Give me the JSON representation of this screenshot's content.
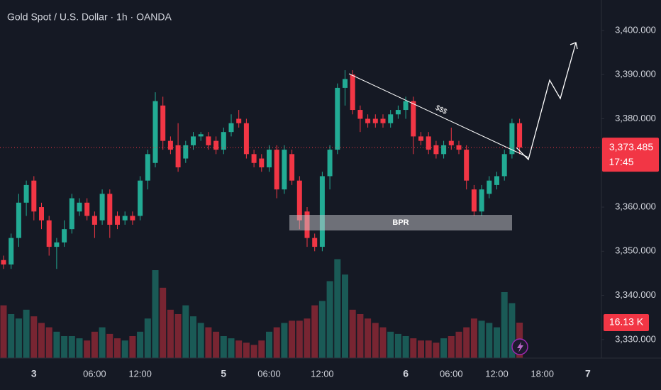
{
  "chart_data": {
    "type": "candlestick",
    "title": "Gold Spot / U.S. Dollar · 1h · OANDA",
    "categories": [
      null,
      null,
      null,
      null,
      "3",
      null,
      null,
      null,
      null,
      null,
      null,
      null,
      "06:00",
      null,
      null,
      null,
      null,
      null,
      "12:00",
      null,
      null,
      null,
      null,
      null,
      null,
      null,
      null,
      null,
      null,
      "5",
      null,
      null,
      null,
      null,
      null,
      "06:00",
      null,
      null,
      null,
      null,
      null,
      null,
      "12:00",
      null,
      null,
      null,
      null,
      null,
      null,
      null,
      null,
      null,
      null,
      "6",
      null,
      null,
      null,
      null,
      null,
      "06:00",
      null,
      null,
      null,
      null,
      null,
      "12:00",
      null,
      null,
      null,
      null,
      null,
      "18:00",
      null,
      null,
      null,
      null,
      null,
      "7"
    ],
    "open": [
      3348,
      3347,
      3353,
      3361,
      3366,
      3360,
      3357,
      3351,
      3352,
      3355,
      3359,
      3361,
      3358,
      3357,
      3363,
      3358,
      3357,
      3358,
      3358,
      3366,
      3370,
      3383,
      3375,
      3374,
      3371,
      3374,
      3376,
      3376,
      3375,
      3373,
      3377,
      3380,
      3379,
      3372,
      3371,
      3369,
      3373,
      3364,
      3372,
      3366,
      3359,
      3353,
      3351,
      3367,
      3373,
      3387,
      3390,
      3382,
      3380,
      3380,
      3380,
      3379,
      3381,
      3382,
      3384,
      3376,
      3376,
      3374,
      3372,
      3375,
      3374,
      3373,
      3364,
      3359,
      3363,
      3365,
      3367,
      3372,
      3379,
      null,
      null,
      null,
      null,
      null,
      null,
      null,
      null,
      null
    ],
    "high": [
      3349,
      3354,
      3363,
      3366,
      3367,
      3361,
      3358,
      3353,
      3357,
      3363,
      3362,
      3362,
      3359,
      3364,
      3364,
      3359,
      3359,
      3359,
      3367,
      3373,
      3386,
      3385,
      3376,
      3379,
      3375,
      3377,
      3377,
      3377,
      3376,
      3378,
      3381,
      3382,
      3380,
      3373,
      3372,
      3374,
      3374,
      3374,
      3373,
      3367,
      3360,
      3354,
      3368,
      3374,
      3388,
      3391,
      3391,
      3383,
      3381,
      3381,
      3381,
      3382,
      3383,
      3385,
      3385,
      3377,
      3377,
      3375,
      3375,
      3378,
      3375,
      3374,
      3365,
      3365,
      3367,
      3368,
      3373,
      3380,
      3380,
      null,
      null,
      null,
      null,
      null,
      null,
      null,
      null,
      null
    ],
    "low": [
      3346,
      3346,
      3351,
      3358,
      3357,
      3355,
      3349,
      3346,
      3351,
      3354,
      3358,
      3357,
      3353,
      3356,
      3353,
      3355,
      3356,
      3356,
      3357,
      3364,
      3369,
      3373,
      3372,
      3368,
      3370,
      3373,
      3375,
      3373,
      3372,
      3372,
      3376,
      3378,
      3371,
      3369,
      3368,
      3368,
      3362,
      3363,
      3365,
      3355,
      3351,
      3350,
      3350,
      3364,
      3372,
      3383,
      3381,
      3377,
      3378,
      3378,
      3378,
      3378,
      3380,
      3380,
      3372,
      3374,
      3372,
      3371,
      3371,
      3373,
      3372,
      3364,
      3358,
      3358,
      3362,
      3364,
      3366,
      3371,
      3372,
      null,
      null,
      null,
      null,
      null,
      null,
      null,
      null,
      null
    ],
    "close": [
      3347,
      3353,
      3361,
      3365,
      3359,
      3357,
      3351,
      3352,
      3355,
      3362,
      3361,
      3358,
      3356,
      3363,
      3356,
      3356,
      3358,
      3357,
      3366,
      3372,
      3384,
      3375,
      3373,
      3369,
      3374,
      3376,
      3376.5,
      3374,
      3373,
      3377,
      3379,
      3379,
      3372,
      3370,
      3369,
      3373,
      3364,
      3373,
      3366,
      3357,
      3353,
      3351,
      3367,
      3373,
      3387,
      3389,
      3382,
      3380,
      3379,
      3379,
      3379,
      3381,
      3382,
      3384,
      3376,
      3375,
      3373,
      3372,
      3374,
      3374,
      3373,
      3366,
      3359,
      3364,
      3366,
      3367,
      3372,
      3379,
      3373.485,
      null,
      null,
      null,
      null,
      null,
      null,
      null,
      null,
      null
    ],
    "volume": [
      24,
      20,
      18,
      22,
      19,
      16,
      14,
      12,
      10,
      10,
      9,
      8,
      12,
      14,
      11,
      9,
      8,
      10,
      12,
      18,
      40,
      32,
      22,
      20,
      24,
      19,
      16,
      14,
      12,
      10,
      9,
      8,
      7,
      6,
      8,
      12,
      14,
      16,
      17,
      17,
      18,
      24,
      26,
      35,
      45,
      38,
      22,
      20,
      18,
      16,
      14,
      12,
      11,
      10,
      9,
      8,
      8,
      7,
      9,
      10,
      12,
      14,
      18,
      17,
      16,
      14,
      30,
      25,
      16.13,
      null,
      null,
      null,
      null,
      null,
      null,
      null,
      null,
      null
    ],
    "volume_last": {
      "value": 16.13,
      "label": "16.13 K"
    },
    "volume_ylim": [
      0,
      40
    ],
    "up_color": "#22ab94",
    "down_color": "#f23645",
    "ylim": [
      3325.8,
      3406.9
    ],
    "yticks": [
      {
        "value": 3330,
        "label": "3,330.000"
      },
      {
        "value": 3340,
        "label": "3,340.000"
      },
      {
        "value": 3350,
        "label": "3,350.000"
      },
      {
        "value": 3360,
        "label": "3,360.000"
      },
      {
        "value": 3380,
        "label": "3,380.000"
      },
      {
        "value": 3390,
        "label": "3,390.000"
      },
      {
        "value": 3400,
        "label": "3,400.000"
      }
    ],
    "last_price": {
      "value": 3373.485,
      "label": "3,373.485"
    },
    "countdown": "17:45",
    "annotations": {
      "zone": "BPR",
      "trend": "$$$"
    }
  }
}
